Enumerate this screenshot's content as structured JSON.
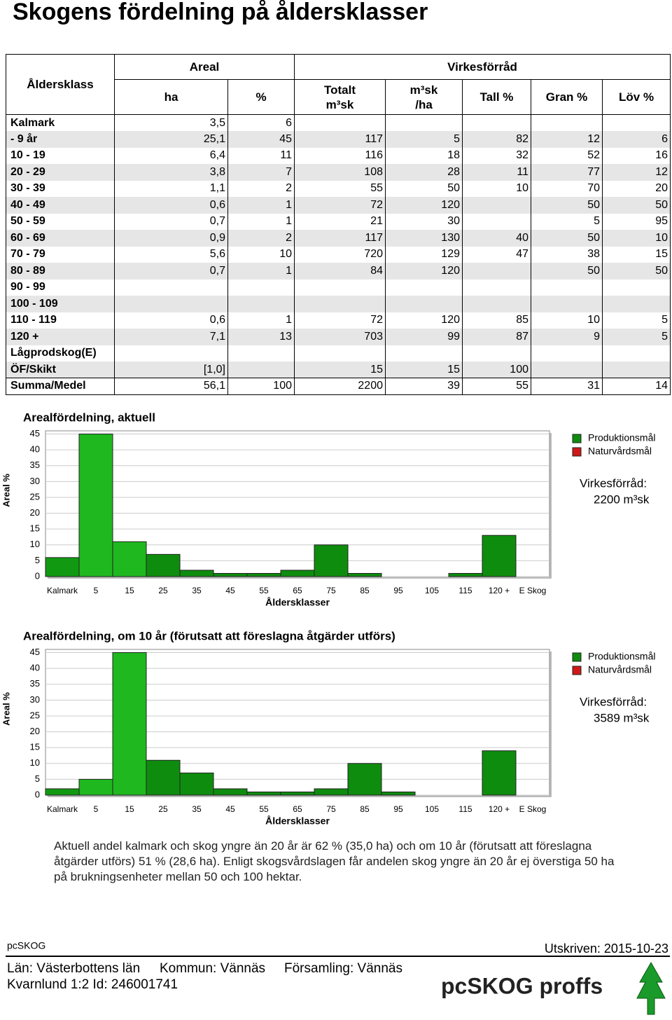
{
  "title": "Skogens fördelning på åldersklasser",
  "table": {
    "header": {
      "age_class": "Åldersklass",
      "area": "Areal",
      "stock": "Virkesförråd",
      "columns": [
        "ha",
        "%",
        "Totalt\nm³sk",
        "m³sk\n/ha",
        "Tall %",
        "Gran %",
        "Löv %"
      ]
    },
    "rows": [
      [
        "Kalmark",
        "3,5",
        "6",
        null,
        null,
        null,
        null,
        null
      ],
      [
        "- 9 år",
        "25,1",
        "45",
        "117",
        "5",
        "82",
        "12",
        "6"
      ],
      [
        "10 - 19",
        "6,4",
        "11",
        "116",
        "18",
        "32",
        "52",
        "16"
      ],
      [
        "20 - 29",
        "3,8",
        "7",
        "108",
        "28",
        "11",
        "77",
        "12"
      ],
      [
        "30 - 39",
        "1,1",
        "2",
        "55",
        "50",
        "10",
        "70",
        "20"
      ],
      [
        "40 - 49",
        "0,6",
        "1",
        "72",
        "120",
        null,
        "50",
        "50"
      ],
      [
        "50 - 59",
        "0,7",
        "1",
        "21",
        "30",
        null,
        "5",
        "95"
      ],
      [
        "60 - 69",
        "0,9",
        "2",
        "117",
        "130",
        "40",
        "50",
        "10"
      ],
      [
        "70 - 79",
        "5,6",
        "10",
        "720",
        "129",
        "47",
        "38",
        "15"
      ],
      [
        "80 - 89",
        "0,7",
        "1",
        "84",
        "120",
        null,
        "50",
        "50"
      ],
      [
        "90 - 99",
        null,
        null,
        null,
        null,
        null,
        null,
        null
      ],
      [
        "100 - 109",
        null,
        null,
        null,
        null,
        null,
        null,
        null
      ],
      [
        "110 - 119",
        "0,6",
        "1",
        "72",
        "120",
        "85",
        "10",
        "5"
      ],
      [
        "120 +",
        "7,1",
        "13",
        "703",
        "99",
        "87",
        "9",
        "5"
      ],
      [
        "Lågprodskog(E)",
        null,
        null,
        null,
        null,
        null,
        null,
        null
      ],
      [
        "ÖF/Skikt",
        "[1,0]",
        null,
        "15",
        "15",
        "100",
        null,
        null
      ],
      [
        "Summa/Medel",
        "56,1",
        "100",
        "2200",
        "39",
        "55",
        "31",
        "14"
      ]
    ]
  },
  "chart_data": [
    {
      "type": "bar",
      "title": "Arealfördelning, aktuell",
      "y_label": "Areal %",
      "x_label": "Åldersklasser",
      "categories": [
        "Kalmark",
        "5",
        "15",
        "25",
        "35",
        "45",
        "55",
        "65",
        "75",
        "85",
        "95",
        "105",
        "115",
        "120 +",
        "E Skog"
      ],
      "values": [
        6,
        45,
        11,
        7,
        2,
        1,
        1,
        2,
        10,
        1,
        0,
        0,
        1,
        13,
        0
      ],
      "colors": [
        "#119a11",
        "#1fb81f",
        "#1fb81f",
        "#0e8c0e",
        "#0e8c0e",
        "#0e8c0e",
        "#0e8c0e",
        "#0e8c0e",
        "#0e8c0e",
        "#0e8c0e",
        "#0e8c0e",
        "#0e8c0e",
        "#0e8c0e",
        "#0e8c0e",
        "#0e8c0e"
      ],
      "ylim": [
        0,
        46
      ],
      "yticks": [
        0,
        5,
        10,
        15,
        20,
        25,
        30,
        35,
        40,
        45
      ],
      "grid": true,
      "legend": [
        {
          "name": "Produktionsmål",
          "color": "#0e8c0e"
        },
        {
          "name": "Naturvårdsmål",
          "color": "#d01818"
        }
      ],
      "annotation_label": "Virkesförråd:",
      "annotation_value": "2200 m³sk"
    },
    {
      "type": "bar",
      "title": "Arealfördelning, om 10 år (förutsatt att föreslagna åtgärder utförs)",
      "y_label": "Areal %",
      "x_label": "Åldersklasser",
      "categories": [
        "Kalmark",
        "5",
        "15",
        "25",
        "35",
        "45",
        "55",
        "65",
        "75",
        "85",
        "95",
        "105",
        "115",
        "120 +",
        "E Skog"
      ],
      "values": [
        2,
        5,
        45,
        11,
        7,
        2,
        1,
        1,
        2,
        10,
        1,
        0,
        0,
        14,
        0
      ],
      "colors": [
        "#119a11",
        "#1fb81f",
        "#1fb81f",
        "#0e8c0e",
        "#0e8c0e",
        "#0e8c0e",
        "#0e8c0e",
        "#0e8c0e",
        "#0e8c0e",
        "#0e8c0e",
        "#0e8c0e",
        "#0e8c0e",
        "#0e8c0e",
        "#0e8c0e",
        "#0e8c0e"
      ],
      "ylim": [
        0,
        46
      ],
      "yticks": [
        0,
        5,
        10,
        15,
        20,
        25,
        30,
        35,
        40,
        45
      ],
      "grid": true,
      "legend": [
        {
          "name": "Produktionsmål",
          "color": "#0e8c0e"
        },
        {
          "name": "Naturvårdsmål",
          "color": "#d01818"
        }
      ],
      "annotation_label": "Virkesförråd:",
      "annotation_value": "3589 m³sk"
    }
  ],
  "paragraph": "Aktuell andel kalmark och skog yngre än 20 år är 62 % (35,0 ha) och om 10 år (förutsatt att föreslagna åtgärder utförs) 51 % (28,6 ha). Enligt skogsvårdslagen får andelen skog yngre än 20 år ej överstiga 50 ha på brukningsenheter mellan 50 och 100 hektar.",
  "footer": {
    "program": "pcSKOG",
    "printed": "Utskriven: 2015-10-23",
    "county": "Län: Västerbottens län",
    "municipality": "Kommun: Vännäs",
    "parish": "Församling: Vännäs",
    "property": "Kvarnlund 1:2 Id: 246001741",
    "logo": "pcSKOG proffs"
  }
}
